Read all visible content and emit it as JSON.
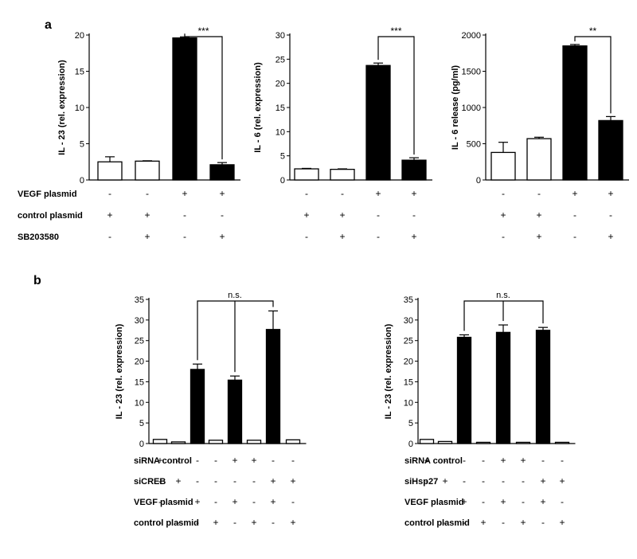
{
  "panels": [
    {
      "letter": "a"
    },
    {
      "letter": "b"
    }
  ],
  "chart_data": [
    {
      "type": "bar",
      "panel": "a",
      "ylabel": "IL - 23 (rel. expression)",
      "ylim": [
        0,
        21
      ],
      "yticks": [
        0,
        5,
        10,
        15,
        20
      ],
      "values": [
        2.5,
        2.6,
        19.6,
        2.1
      ],
      "errors": [
        0.7,
        0.05,
        0.15,
        0.3
      ],
      "fills": [
        "open",
        "open",
        "filled",
        "filled"
      ],
      "significance": {
        "from": 2,
        "to": 3,
        "label": "***"
      },
      "conditions": [
        {
          "label": "VEGF plasmid",
          "marks": [
            "-",
            "-",
            "+",
            "+"
          ]
        },
        {
          "label": "control plasmid",
          "marks": [
            "+",
            "+",
            "-",
            "-"
          ]
        },
        {
          "label": "SB203580",
          "marks": [
            "-",
            "+",
            "-",
            "+"
          ]
        }
      ]
    },
    {
      "type": "bar",
      "panel": "a",
      "ylabel": "IL - 6 (rel. expression)",
      "ylim": [
        0,
        30
      ],
      "yticks": [
        0,
        5,
        10,
        15,
        20,
        25,
        30
      ],
      "values": [
        2.3,
        2.2,
        23.7,
        4.1
      ],
      "errors": [
        0.1,
        0.1,
        0.5,
        0.5
      ],
      "fills": [
        "open",
        "open",
        "filled",
        "filled"
      ],
      "significance": {
        "from": 2,
        "to": 3,
        "label": "***"
      },
      "conditions": [
        {
          "label": "",
          "marks": [
            "-",
            "-",
            "+",
            "+"
          ]
        },
        {
          "label": "",
          "marks": [
            "+",
            "+",
            "-",
            "-"
          ]
        },
        {
          "label": "",
          "marks": [
            "-",
            "+",
            "-",
            "+"
          ]
        }
      ]
    },
    {
      "type": "bar",
      "panel": "a",
      "ylabel": "IL - 6 release (pg/ml)",
      "ylim": [
        0,
        2000
      ],
      "yticks": [
        0,
        500,
        1000,
        1500,
        2000
      ],
      "values": [
        380,
        570,
        1850,
        820
      ],
      "errors": [
        140,
        20,
        20,
        55
      ],
      "fills": [
        "open",
        "open",
        "filled",
        "filled"
      ],
      "significance": {
        "from": 2,
        "to": 3,
        "label": "**"
      },
      "conditions": [
        {
          "label": "",
          "marks": [
            "-",
            "-",
            "+",
            "+"
          ]
        },
        {
          "label": "",
          "marks": [
            "+",
            "+",
            "-",
            "-"
          ]
        },
        {
          "label": "",
          "marks": [
            "-",
            "+",
            "-",
            "+"
          ]
        }
      ]
    },
    {
      "type": "bar",
      "panel": "b",
      "ylabel": "IL - 23 (rel. expression)",
      "ylim": [
        0,
        35
      ],
      "yticks": [
        0,
        5,
        10,
        15,
        20,
        25,
        30,
        35
      ],
      "values": [
        1.0,
        0.4,
        18.0,
        0.8,
        15.4,
        0.8,
        27.7,
        0.9
      ],
      "errors": [
        0,
        0,
        1.3,
        0,
        1.0,
        0,
        4.5,
        0
      ],
      "fills": [
        "open",
        "open",
        "filled",
        "open",
        "filled",
        "open",
        "filled",
        "open"
      ],
      "ns_bracket": {
        "bars": [
          2,
          4,
          6
        ],
        "label": "n.s."
      },
      "conditions": [
        {
          "label": "siRNA control",
          "marks": [
            "+",
            "-",
            "-",
            "-",
            "+",
            "+",
            "-",
            "-"
          ]
        },
        {
          "label": "siCREB",
          "marks": [
            "-",
            "+",
            "-",
            "-",
            "-",
            "-",
            "+",
            "+"
          ]
        },
        {
          "label": "VEGF plasmid",
          "marks": [
            "-",
            "-",
            "+",
            "-",
            "+",
            "-",
            "+",
            "-"
          ]
        },
        {
          "label": "control plasmid",
          "marks": [
            "-",
            "-",
            "-",
            "+",
            "-",
            "+",
            "-",
            "+"
          ]
        }
      ]
    },
    {
      "type": "bar",
      "panel": "b",
      "ylabel": "IL - 23 (rel. expression)",
      "ylim": [
        0,
        35
      ],
      "yticks": [
        0,
        5,
        10,
        15,
        20,
        25,
        30,
        35
      ],
      "values": [
        1.0,
        0.5,
        25.8,
        0.3,
        27.0,
        0.3,
        27.5,
        0.3
      ],
      "errors": [
        0,
        0,
        0.6,
        0,
        1.8,
        0,
        0.7,
        0
      ],
      "fills": [
        "open",
        "open",
        "filled",
        "open",
        "filled",
        "open",
        "filled",
        "open"
      ],
      "ns_bracket": {
        "bars": [
          2,
          4,
          6
        ],
        "label": "n.s."
      },
      "conditions": [
        {
          "label": "siRNA control",
          "marks": [
            "+",
            "-",
            "-",
            "-",
            "+",
            "+",
            "-",
            "-"
          ]
        },
        {
          "label": "siHsp27",
          "marks": [
            "-",
            "+",
            "-",
            "-",
            "-",
            "-",
            "+",
            "+"
          ]
        },
        {
          "label": "VEGF plasmid",
          "marks": [
            "-",
            "-",
            "+",
            "-",
            "+",
            "-",
            "+",
            "-"
          ]
        },
        {
          "label": "control plasmid",
          "marks": [
            "-",
            "-",
            "-",
            "+",
            "-",
            "+",
            "-",
            "+"
          ]
        }
      ]
    }
  ]
}
